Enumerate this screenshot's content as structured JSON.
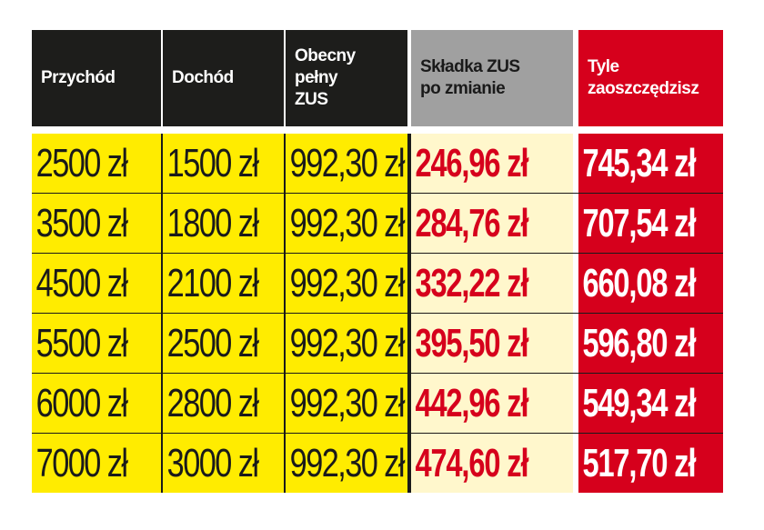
{
  "headers": [
    {
      "label": "Przychód"
    },
    {
      "label": "Dochód"
    },
    {
      "label": "Obecny\npełny\nZUS"
    },
    {
      "label": "Składka ZUS\npo zmianie"
    },
    {
      "label": "Tyle\nzaoszczędzisz"
    }
  ],
  "rows": [
    {
      "przychod": "2500 zł",
      "dochod": "1500 zł",
      "zus": "992,30 zł",
      "nowa": "246,96 zł",
      "oszczednosc": "745,34 zł"
    },
    {
      "przychod": "3500 zł",
      "dochod": "1800 zł",
      "zus": "992,30 zł",
      "nowa": "284,76 zł",
      "oszczednosc": "707,54 zł"
    },
    {
      "przychod": "4500 zł",
      "dochod": "2100 zł",
      "zus": "992,30 zł",
      "nowa": "332,22 zł",
      "oszczednosc": "660,08 zł"
    },
    {
      "przychod": "5500 zł",
      "dochod": "2500 zł",
      "zus": "992,30 zł",
      "nowa": "395,50 zł",
      "oszczednosc": "596,80 zł"
    },
    {
      "przychod": "6000 zł",
      "dochod": "2800 zł",
      "zus": "992,30 zł",
      "nowa": "442,96 zł",
      "oszczednosc": "549,34 zł"
    },
    {
      "przychod": "7000 zł",
      "dochod": "3000 zł",
      "zus": "992,30 zł",
      "nowa": "474,60 zł",
      "oszczednosc": "517,70 zł"
    }
  ],
  "colors": {
    "yellow": "#ffec00",
    "red": "#d6001c",
    "dark": "#1d1d1b",
    "grey": "#a0a0a0",
    "cream": "#fff7cc"
  }
}
